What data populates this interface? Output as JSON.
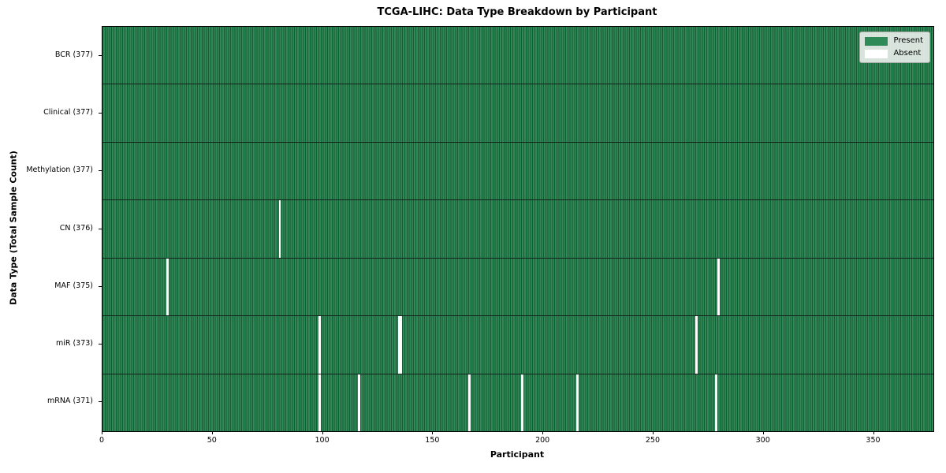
{
  "chart_data": {
    "type": "heatmap",
    "title": "TCGA-LIHC: Data Type Breakdown by Participant",
    "xlabel": "Participant",
    "ylabel": "Data Type (Total Sample Count)",
    "n_participants": 377,
    "x_ticks": [
      0,
      50,
      100,
      150,
      200,
      250,
      300,
      350
    ],
    "legend_position": "upper right",
    "grid": false,
    "legend": [
      {
        "label": "Present",
        "color": "#2e8b57"
      },
      {
        "label": "Absent",
        "color": "#ffffff"
      }
    ],
    "colors": {
      "present": "#2e8b57",
      "absent": "#ffffff",
      "cell_edge": "#1c5736",
      "row_divider": "#14231a",
      "plot_border": "#000000"
    },
    "rows": [
      {
        "name": "BCR",
        "label": "BCR (377)",
        "present_count": 377,
        "absent_participants": []
      },
      {
        "name": "Clinical",
        "label": "Clinical (377)",
        "present_count": 377,
        "absent_participants": []
      },
      {
        "name": "Methylation",
        "label": "Methylation (377)",
        "present_count": 377,
        "absent_participants": []
      },
      {
        "name": "CN",
        "label": "CN (376)",
        "present_count": 376,
        "absent_participants": [
          80
        ]
      },
      {
        "name": "MAF",
        "label": "MAF (375)",
        "present_count": 375,
        "absent_participants": [
          29,
          279
        ]
      },
      {
        "name": "miR",
        "label": "miR (373)",
        "present_count": 373,
        "absent_participants": [
          98,
          134,
          135,
          269
        ]
      },
      {
        "name": "mRNA",
        "label": "mRNA (371)",
        "present_count": 371,
        "absent_participants": [
          98,
          116,
          166,
          190,
          215,
          278
        ]
      }
    ]
  }
}
